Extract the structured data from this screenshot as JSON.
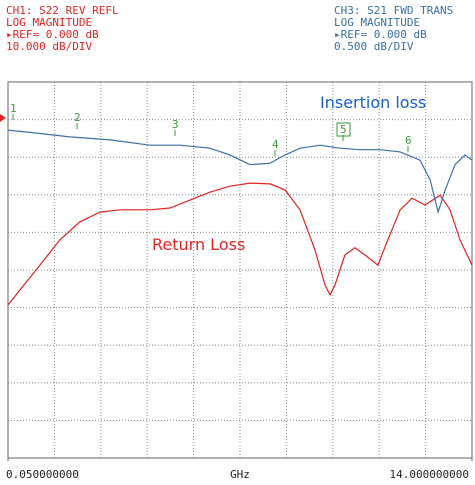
{
  "chart_data": {
    "type": "line",
    "header_left": [
      "CH1: S22 REV REFL",
      "LOG MAGNITUDE",
      "▸REF= 0.000 dB",
      "10.000 dB/DIV"
    ],
    "header_right": [
      "CH3: S21 FWD TRANS",
      "LOG MAGNITUDE",
      "▸REF= 0.000 dB",
      "0.500 dB/DIV"
    ],
    "xlabel": "GHz",
    "xlim": [
      0.05,
      14
    ],
    "xticks": [
      {
        "value": 0.05,
        "label": "0.050000000"
      },
      {
        "value": 14,
        "label": "14.000000000"
      }
    ],
    "ylim": [
      -90,
      10
    ],
    "y2lim": [
      -4.5,
      0.5
    ],
    "grid": true,
    "markers": [
      "1",
      "2",
      "3",
      "4",
      "5",
      "6"
    ],
    "annotations": [
      "Insertion loss",
      "Return Loss"
    ],
    "series": [
      {
        "name": "Return Loss",
        "color": "#e02424",
        "x": [
          0.05,
          0.41,
          1.01,
          1.61,
          2.21,
          2.82,
          3.42,
          4.32,
          4.92,
          5.52,
          6.12,
          6.72,
          7.33,
          7.93,
          8.38,
          8.83,
          9.28,
          9.58,
          9.73,
          9.88,
          10.18,
          10.48,
          10.78,
          11.17,
          11.47,
          11.84,
          12.2,
          12.59,
          13.04,
          13.34,
          13.64,
          14.0
        ],
        "values": [
          -49.3,
          -45.3,
          -38.7,
          -32.0,
          -27.2,
          -24.6,
          -24.0,
          -24.0,
          -23.5,
          -21.4,
          -19.3,
          -17.7,
          -16.9,
          -17.1,
          -18.7,
          -24.0,
          -34.7,
          -44.0,
          -46.6,
          -44.0,
          -36.0,
          -34.1,
          -36.0,
          -38.7,
          -32.0,
          -24.0,
          -20.9,
          -22.7,
          -20.1,
          -24.0,
          -32.0,
          -38.7
        ]
      },
      {
        "name": "Insertion loss",
        "color": "#3b6fa6",
        "axis": "y2",
        "x": [
          0.05,
          0.71,
          1.91,
          3.12,
          4.32,
          5.22,
          6.12,
          6.72,
          7.33,
          7.93,
          8.38,
          8.83,
          9.43,
          10.03,
          10.63,
          11.23,
          11.84,
          12.44,
          12.74,
          12.98,
          13.19,
          13.49,
          13.79,
          14.0
        ],
        "values": [
          -0.14,
          -0.17,
          -0.23,
          -0.27,
          -0.34,
          -0.34,
          -0.38,
          -0.47,
          -0.6,
          -0.58,
          -0.47,
          -0.38,
          -0.34,
          -0.38,
          -0.4,
          -0.4,
          -0.43,
          -0.54,
          -0.8,
          -1.23,
          -0.94,
          -0.6,
          -0.47,
          -0.54
        ]
      }
    ]
  }
}
